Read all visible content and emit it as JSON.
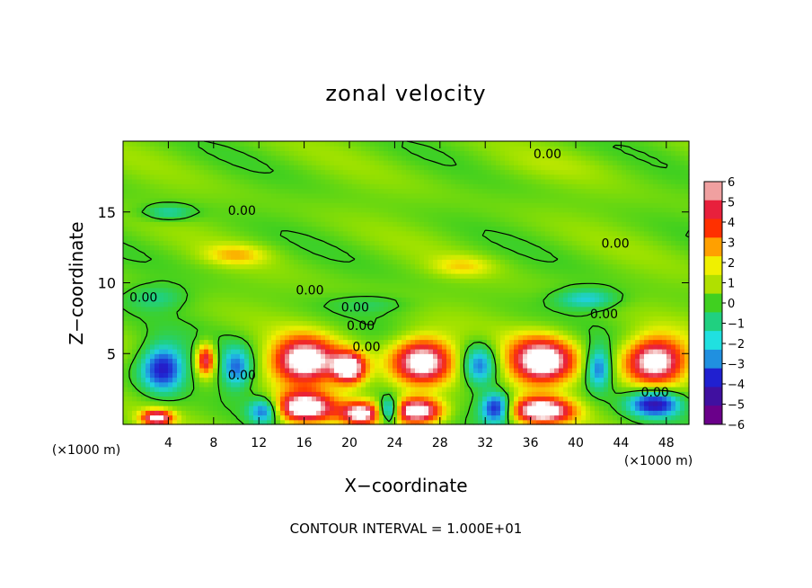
{
  "chart_data": {
    "type": "heatmap",
    "title": "zonal velocity",
    "xlabel": "X−coordinate",
    "ylabel": "Z−coordinate",
    "x_unit": "(×1000 m)",
    "y_unit": "(×1000 m)",
    "xlim": [
      0,
      50
    ],
    "ylim": [
      0,
      20
    ],
    "x_ticks": [
      4,
      8,
      12,
      16,
      20,
      24,
      28,
      32,
      36,
      40,
      44,
      48
    ],
    "x_tick_labels": [
      "4",
      "8",
      "12",
      "16",
      "20",
      "24",
      "28",
      "32",
      "36",
      "40",
      "44",
      "48"
    ],
    "y_ticks": [
      5,
      10,
      15
    ],
    "y_tick_labels": [
      "5",
      "10",
      "15"
    ],
    "footer": "CONTOUR INTERVAL = 1.000E+01",
    "contour_level_label": "0.00",
    "colorbar": {
      "min": -6,
      "max": 6,
      "ticks": [
        6,
        5,
        4,
        3,
        2,
        1,
        0,
        -1,
        -2,
        -3,
        -4,
        -5,
        -6
      ],
      "tick_labels": [
        "6",
        "5",
        "4",
        "3",
        "2",
        "1",
        "0",
        "−1",
        "−2",
        "−3",
        "−4",
        "−5",
        "−6"
      ],
      "colors": [
        "#f0a0a0",
        "#e8203c",
        "#ff3000",
        "#ffa000",
        "#f0f000",
        "#b0e000",
        "#40d020",
        "#20d080",
        "#20e0e0",
        "#2090e0",
        "#2020d0",
        "#4010a0",
        "#6a008a"
      ]
    },
    "background_value": 0.5,
    "features": [
      {
        "x": 38,
        "z": 18.3,
        "rx": 8,
        "rz": 1.2,
        "value": 0.3
      },
      {
        "x": 4,
        "z": 15.0,
        "rx": 2.5,
        "rz": 0.6,
        "value": -2.0
      },
      {
        "x": 10,
        "z": 12.0,
        "rx": 3,
        "rz": 0.8,
        "value": 1.8
      },
      {
        "x": 30,
        "z": 11.2,
        "rx": 3,
        "rz": 0.8,
        "value": 1.5
      },
      {
        "x": 3,
        "z": 9.0,
        "rx": 3,
        "rz": 1.0,
        "value": -1.5
      },
      {
        "x": 22,
        "z": 8.5,
        "rx": 4,
        "rz": 0.7,
        "value": -1.0
      },
      {
        "x": 41,
        "z": 8.9,
        "rx": 3,
        "rz": 0.8,
        "value": -2.5
      },
      {
        "x": 3.5,
        "z": 4.0,
        "rx": 2.2,
        "rz": 1.8,
        "value": -5.0
      },
      {
        "x": 7.3,
        "z": 4.6,
        "rx": 0.9,
        "rz": 1.2,
        "value": 5.0
      },
      {
        "x": 10,
        "z": 4.0,
        "rx": 1.5,
        "rz": 1.6,
        "value": -3.5
      },
      {
        "x": 16,
        "z": 4.5,
        "rx": 3.2,
        "rz": 1.8,
        "value": 7.0
      },
      {
        "x": 20,
        "z": 4.0,
        "rx": 1.6,
        "rz": 1.2,
        "value": 6.5
      },
      {
        "x": 26.5,
        "z": 4.5,
        "rx": 3.0,
        "rz": 1.8,
        "value": 7.0
      },
      {
        "x": 31.5,
        "z": 4.2,
        "rx": 1.6,
        "rz": 1.6,
        "value": -3.5
      },
      {
        "x": 37,
        "z": 4.5,
        "rx": 3.2,
        "rz": 1.8,
        "value": 7.0
      },
      {
        "x": 42,
        "z": 4.0,
        "rx": 1.3,
        "rz": 1.6,
        "value": -4.0
      },
      {
        "x": 47,
        "z": 4.5,
        "rx": 3.0,
        "rz": 1.8,
        "value": 7.0
      },
      {
        "x": 16,
        "z": 1.2,
        "rx": 3.0,
        "rz": 1.2,
        "value": 7.0
      },
      {
        "x": 21,
        "z": 0.8,
        "rx": 1.8,
        "rz": 0.9,
        "value": 6.0
      },
      {
        "x": 26,
        "z": 1.0,
        "rx": 2.5,
        "rz": 1.0,
        "value": 7.0
      },
      {
        "x": 37,
        "z": 1.0,
        "rx": 3.0,
        "rz": 1.0,
        "value": 7.0
      },
      {
        "x": 3,
        "z": 0.5,
        "rx": 1.5,
        "rz": 0.6,
        "value": 6.0
      },
      {
        "x": 23.5,
        "z": 1.0,
        "rx": 1.0,
        "rz": 1.0,
        "value": -5.0
      },
      {
        "x": 33,
        "z": 1.2,
        "rx": 1.5,
        "rz": 1.2,
        "value": -5.0
      },
      {
        "x": 47,
        "z": 1.5,
        "rx": 2.5,
        "rz": 1.0,
        "value": -5.0
      },
      {
        "x": 12.5,
        "z": 1.0,
        "rx": 1.5,
        "rz": 1.0,
        "value": -4.0
      }
    ]
  }
}
